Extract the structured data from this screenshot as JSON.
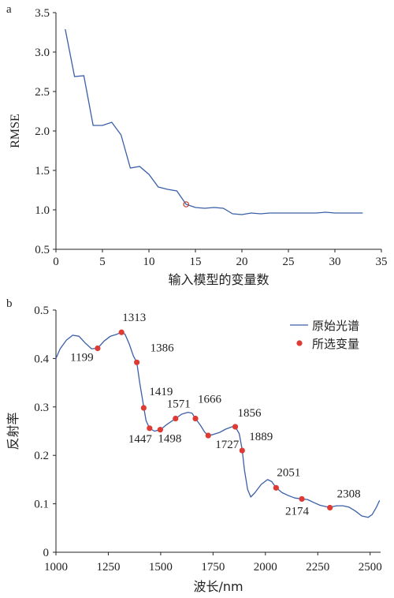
{
  "chart_data": [
    {
      "panel_label": "a",
      "type": "line",
      "xlabel": "输入模型的变量数",
      "ylabel": "RMSE",
      "xlim": [
        0,
        35
      ],
      "ylim": [
        0.5,
        3.5
      ],
      "xticks": [
        "0",
        "5",
        "10",
        "15",
        "20",
        "25",
        "30",
        "35"
      ],
      "yticks": [
        "0.5",
        "1.0",
        "1.5",
        "2.0",
        "2.5",
        "3.0",
        "3.5"
      ],
      "series": [
        {
          "x": [
            1,
            2,
            3,
            4,
            5,
            6,
            7,
            8,
            9,
            10,
            11,
            12,
            13,
            14,
            15,
            16,
            17,
            18,
            19,
            20,
            21,
            22,
            23,
            24,
            25,
            26,
            27,
            28,
            29,
            30,
            31,
            32,
            33
          ],
          "values": [
            3.29,
            2.69,
            2.7,
            2.07,
            2.07,
            2.11,
            1.95,
            1.53,
            1.55,
            1.45,
            1.29,
            1.26,
            1.24,
            1.07,
            1.03,
            1.02,
            1.03,
            1.02,
            0.95,
            0.94,
            0.96,
            0.95,
            0.96,
            0.96,
            0.96,
            0.96,
            0.96,
            0.96,
            0.97,
            0.96,
            0.96,
            0.96,
            0.96
          ]
        }
      ],
      "highlight": {
        "x": 14,
        "y": 1.07
      },
      "colors": {
        "line": "#3a5fa8",
        "marker": "#c0392b"
      }
    },
    {
      "panel_label": "b",
      "type": "line",
      "xlabel": "波长/nm",
      "ylabel": "反射率",
      "xlim": [
        1000,
        2550
      ],
      "ylim": [
        0,
        0.5
      ],
      "xticks": [
        "1000",
        "1250",
        "1500",
        "1750",
        "2000",
        "2250",
        "2500"
      ],
      "yticks": [
        "0",
        "0.1",
        "0.2",
        "0.3",
        "0.4",
        "0.5"
      ],
      "legend": {
        "position": "top-right",
        "entries": [
          "原始光谱",
          "所选变量"
        ]
      },
      "series": [
        {
          "name": "原始光谱",
          "x": [
            1000,
            1020,
            1050,
            1080,
            1110,
            1140,
            1170,
            1199,
            1230,
            1260,
            1290,
            1313,
            1330,
            1350,
            1370,
            1386,
            1400,
            1419,
            1430,
            1447,
            1470,
            1498,
            1530,
            1571,
            1600,
            1630,
            1650,
            1666,
            1690,
            1710,
            1727,
            1750,
            1780,
            1810,
            1840,
            1856,
            1875,
            1889,
            1900,
            1915,
            1930,
            1950,
            1980,
            2010,
            2030,
            2051,
            2080,
            2110,
            2140,
            2174,
            2200,
            2230,
            2260,
            2290,
            2308,
            2340,
            2370,
            2400,
            2430,
            2460,
            2490,
            2510,
            2530,
            2545
          ],
          "values": [
            0.4,
            0.42,
            0.438,
            0.448,
            0.446,
            0.432,
            0.42,
            0.421,
            0.436,
            0.446,
            0.45,
            0.454,
            0.45,
            0.43,
            0.405,
            0.392,
            0.35,
            0.3,
            0.272,
            0.256,
            0.25,
            0.253,
            0.264,
            0.276,
            0.285,
            0.289,
            0.287,
            0.276,
            0.262,
            0.248,
            0.241,
            0.243,
            0.247,
            0.254,
            0.259,
            0.259,
            0.245,
            0.212,
            0.17,
            0.13,
            0.114,
            0.123,
            0.14,
            0.15,
            0.146,
            0.133,
            0.123,
            0.117,
            0.112,
            0.11,
            0.109,
            0.103,
            0.097,
            0.094,
            0.093,
            0.096,
            0.096,
            0.093,
            0.085,
            0.075,
            0.072,
            0.078,
            0.093,
            0.107
          ]
        },
        {
          "name": "所选变量",
          "x": [
            1199,
            1313,
            1386,
            1419,
            1447,
            1498,
            1571,
            1666,
            1727,
            1856,
            1889,
            2051,
            2174,
            2308
          ],
          "values": [
            0.421,
            0.454,
            0.392,
            0.298,
            0.256,
            0.253,
            0.276,
            0.276,
            0.241,
            0.259,
            0.21,
            0.133,
            0.11,
            0.092
          ],
          "labels": [
            "1199",
            "1313",
            "1386",
            "1419",
            "1447",
            "1498",
            "1571",
            "1666",
            "1727",
            "1856",
            "1889",
            "2051",
            "2174",
            "2308"
          ]
        }
      ],
      "colors": {
        "line": "#3a5fa8",
        "marker": "#dd3b34"
      }
    }
  ]
}
